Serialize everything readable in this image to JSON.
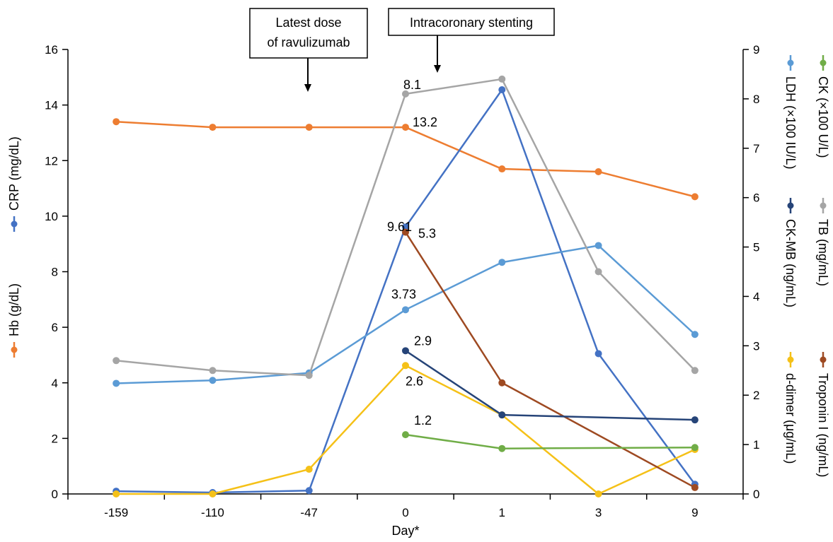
{
  "chart_data": {
    "type": "line",
    "xlabel": "Day*",
    "categories": [
      "-159",
      "-110",
      "-47",
      "0",
      "1",
      "3",
      "9"
    ],
    "y_left": {
      "ticks": [
        "0",
        "2",
        "4",
        "6",
        "8",
        "10",
        "12",
        "14",
        "16"
      ],
      "range": [
        0,
        16
      ],
      "labels": [
        {
          "text": "CRP (mg/dL)",
          "series": "CRP"
        },
        {
          "text": "Hb (g/dL)",
          "series": "Hb"
        }
      ]
    },
    "y_right": {
      "ticks": [
        "0",
        "1",
        "2",
        "3",
        "4",
        "5",
        "6",
        "7",
        "8",
        "9"
      ],
      "range": [
        0,
        9
      ],
      "labels": [
        {
          "text": "CK (×100 U/L)",
          "series": "CK"
        },
        {
          "text": "LDH (×100 IU/L)",
          "series": "LDH"
        },
        {
          "text": "TB (mg/mL)",
          "series": "TB"
        },
        {
          "text": "CK-MB (ng/mL)",
          "series": "CK-MB"
        },
        {
          "text": "Troponin I (ng/mL)",
          "series": "Troponin I"
        },
        {
          "text": "d-dimer (μg/mL)",
          "series": "d-dimer"
        }
      ]
    },
    "series": [
      {
        "name": "Hb",
        "axis": "left",
        "color": "#ED7D31",
        "values": [
          13.4,
          13.2,
          13.2,
          13.2,
          11.7,
          11.6,
          10.7
        ]
      },
      {
        "name": "CRP",
        "axis": "left",
        "color": "#4472C4",
        "values": [
          0.1,
          0.05,
          0.12,
          9.61,
          14.55,
          5.05,
          0.35
        ]
      },
      {
        "name": "LDH",
        "axis": "right",
        "color": "#5B9BD5",
        "values": [
          2.24,
          2.3,
          2.45,
          3.73,
          4.69,
          5.03,
          3.23
        ]
      },
      {
        "name": "TB",
        "axis": "right",
        "color": "#A5A5A5",
        "values": [
          2.7,
          2.5,
          2.4,
          8.1,
          8.4,
          4.5,
          2.5
        ]
      },
      {
        "name": "d-dimer",
        "axis": "right",
        "color": "#F5C118",
        "values": [
          0.0,
          0.0,
          0.5,
          2.6,
          1.6,
          0.0,
          0.9
        ]
      },
      {
        "name": "Troponin I",
        "axis": "right",
        "color": "#9E4A22",
        "values": [
          null,
          null,
          null,
          5.3,
          2.25,
          null,
          0.13
        ]
      },
      {
        "name": "CK-MB",
        "axis": "right",
        "color": "#264478",
        "values": [
          null,
          null,
          null,
          2.9,
          1.6,
          null,
          1.5
        ]
      },
      {
        "name": "CK",
        "axis": "right",
        "color": "#70AD47",
        "values": [
          null,
          null,
          null,
          1.2,
          0.92,
          null,
          0.94
        ]
      }
    ],
    "data_labels": [
      {
        "text": "13.2",
        "series": "Hb",
        "index": 3
      },
      {
        "text": "8.1",
        "series": "TB",
        "index": 3
      },
      {
        "text": "9.61",
        "series": "CRP",
        "index": 3
      },
      {
        "text": "5.3",
        "series": "Troponin I",
        "index": 3
      },
      {
        "text": "3.73",
        "series": "LDH",
        "index": 3
      },
      {
        "text": "2.9",
        "series": "CK-MB",
        "index": 3
      },
      {
        "text": "2.6",
        "series": "d-dimer",
        "index": 3
      },
      {
        "text": "1.2",
        "series": "CK",
        "index": 3
      }
    ],
    "annotations": [
      {
        "text": [
          "Latest dose",
          "of ravulizumab"
        ],
        "arrow_category": "-47"
      },
      {
        "text": [
          "Intracoronary stenting"
        ],
        "arrow_category": "0"
      }
    ]
  }
}
